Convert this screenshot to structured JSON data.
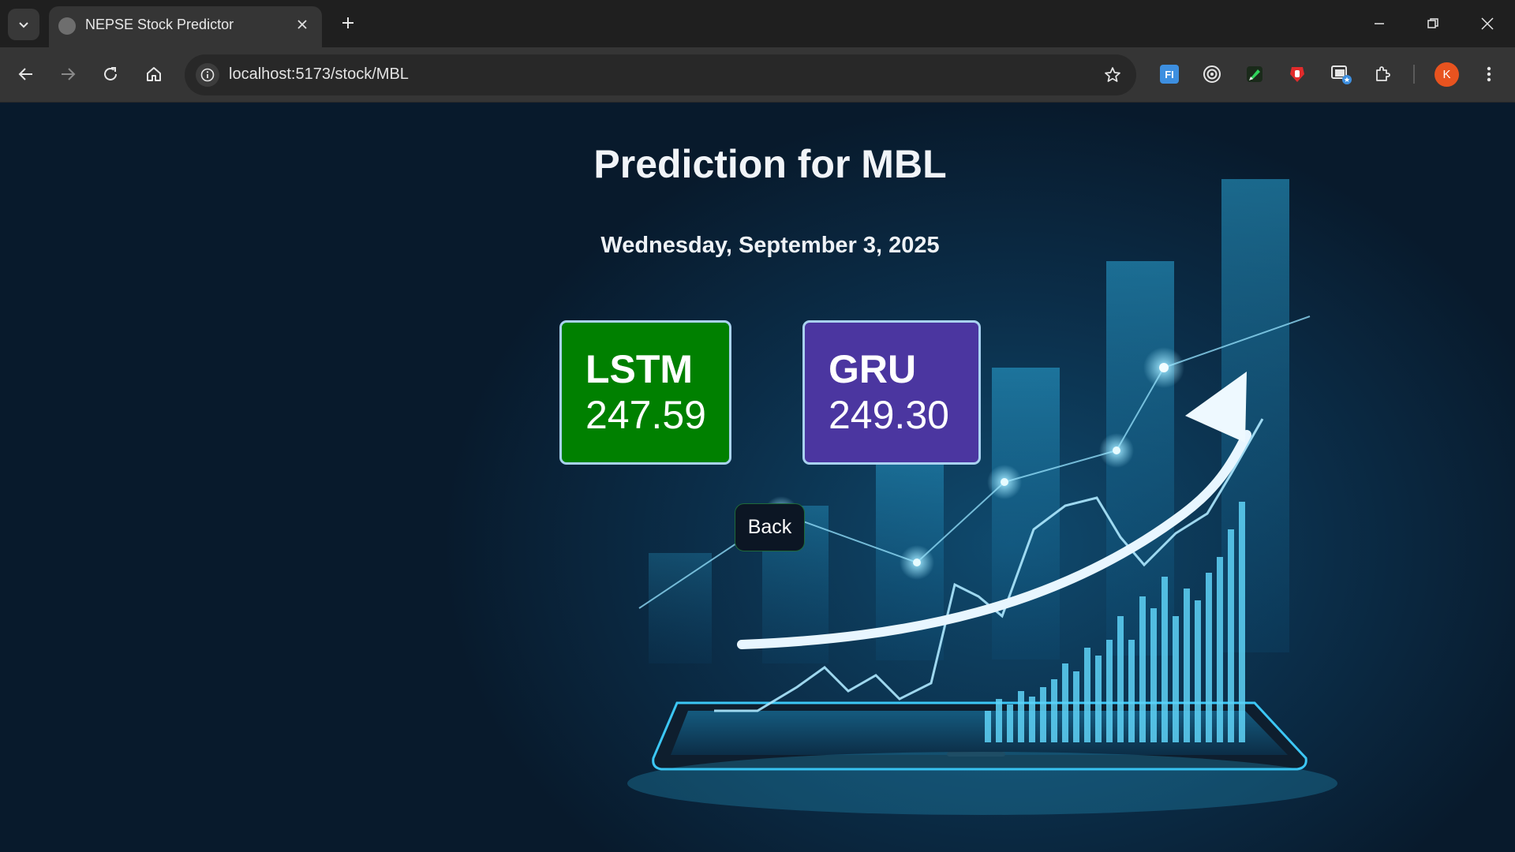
{
  "browser": {
    "tab_title": "NEPSE Stock Predictor",
    "url": "localhost:5173/stock/MBL",
    "profile_initial": "K",
    "extension_fi_label": "FI"
  },
  "page": {
    "title": "Prediction for MBL",
    "date": "Wednesday, September 3, 2025",
    "predictions": [
      {
        "model": "LSTM",
        "value": "247.59",
        "color": "#008000"
      },
      {
        "model": "GRU",
        "value": "249.30",
        "color": "#4b36a0"
      }
    ],
    "back_label": "Back"
  }
}
